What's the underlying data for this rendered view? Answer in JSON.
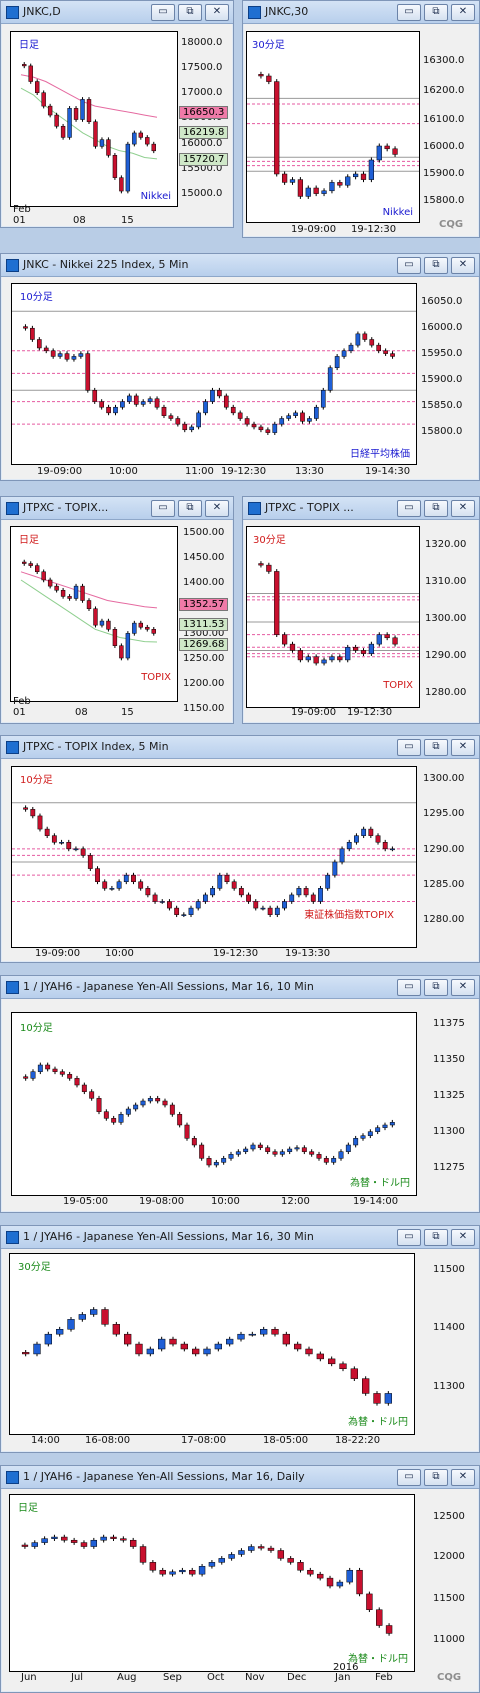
{
  "windows": [
    {
      "id": "w1",
      "title": "JNKC,D",
      "corner": "日足",
      "corner_color": "#1a1ad0",
      "src_label": "Nikkei",
      "src_color": "#1a1ad0",
      "yticks": [
        "18000.0",
        "17500.0",
        "17000.0",
        "16500.0",
        "16000.0",
        "15500.0",
        "15000.0"
      ],
      "xticks": [
        "Feb",
        "01",
        "08",
        "15"
      ],
      "tags": [
        {
          "text": "16650.3",
          "bg": "#f07aa8"
        },
        {
          "text": "16219.8",
          "bg": "#cfe8c8"
        },
        {
          "text": "15720.7",
          "bg": "#cfe8c8"
        }
      ]
    },
    {
      "id": "w2",
      "title": "JNKC,30",
      "corner": "30分足",
      "corner_color": "#1a1ad0",
      "src_label": "Nikkei",
      "src_color": "#1a1ad0",
      "yticks": [
        "16300.0",
        "16200.0",
        "16100.0",
        "16000.0",
        "15900.0",
        "15800.0"
      ],
      "xticks": [
        "19-09:00",
        "19-12:30"
      ],
      "tags": []
    },
    {
      "id": "w3",
      "title": "JNKC - Nikkei 225 Index, 5 Min",
      "corner": "10分足",
      "corner_color": "#1a1ad0",
      "src_label": "日経平均株価",
      "src_color": "#1a1ad0",
      "yticks": [
        "16050.0",
        "16000.0",
        "15950.0",
        "15900.0",
        "15850.0",
        "15800.0"
      ],
      "xticks": [
        "19-09:00",
        "10:00",
        "11:00",
        "19-12:30",
        "13:30",
        "19-14:30"
      ],
      "tags": []
    },
    {
      "id": "w4",
      "title": "JTPXC - TOPIX...",
      "corner": "日足",
      "corner_color": "#d01a1a",
      "src_label": "TOPIX",
      "src_color": "#d01a1a",
      "yticks": [
        "1500.00",
        "1450.00",
        "1400.00",
        "1350.00",
        "1300.00",
        "1250.00",
        "1200.00",
        "1150.00"
      ],
      "xticks": [
        "Feb",
        "01",
        "08",
        "15"
      ],
      "tags": [
        {
          "text": "1352.57",
          "bg": "#f07aa8"
        },
        {
          "text": "1311.53",
          "bg": "#cfe8c8"
        },
        {
          "text": "1269.68",
          "bg": "#cfe8c8"
        }
      ]
    },
    {
      "id": "w5",
      "title": "JTPXC - TOPIX ...",
      "corner": "30分足",
      "corner_color": "#d01a1a",
      "src_label": "TOPIX",
      "src_color": "#d01a1a",
      "yticks": [
        "1320.00",
        "1310.00",
        "1300.00",
        "1290.00",
        "1280.00"
      ],
      "xticks": [
        "19-09:00",
        "19-12:30"
      ],
      "tags": []
    },
    {
      "id": "w6",
      "title": "JTPXC - TOPIX Index, 5 Min",
      "corner": "10分足",
      "corner_color": "#d01a1a",
      "src_label": "東証株価指数TOPIX",
      "src_color": "#d01a1a",
      "yticks": [
        "1300.00",
        "1295.00",
        "1290.00",
        "1285.00",
        "1280.00"
      ],
      "xticks": [
        "19-09:00",
        "10:00",
        "19-12:30",
        "19-13:30"
      ],
      "tags": []
    },
    {
      "id": "w7",
      "title": "1 / JYAH6 - Japanese Yen-All Sessions, Mar 16, 10 Min",
      "corner": "10分足",
      "corner_color": "#1a8a1a",
      "src_label": "為替・ドル円",
      "src_color": "#1a8a1a",
      "yticks": [
        "11375",
        "11350",
        "11325",
        "11300",
        "11275"
      ],
      "xticks": [
        "19-05:00",
        "19-08:00",
        "10:00",
        "12:00",
        "19-14:00"
      ],
      "tags": []
    },
    {
      "id": "w8",
      "title": "1 / JYAH6 - Japanese Yen-All Sessions, Mar 16, 30 Min",
      "corner": "30分足",
      "corner_color": "#1a8a1a",
      "src_label": "為替・ドル円",
      "src_color": "#1a8a1a",
      "yticks": [
        "11500",
        "11400",
        "11300"
      ],
      "xticks": [
        "14:00",
        "16-08:00",
        "17-08:00",
        "18-05:00",
        "18-22:20"
      ],
      "tags": []
    },
    {
      "id": "w9",
      "title": "1 / JYAH6 - Japanese Yen-All Sessions, Mar 16, Daily",
      "corner": "日足",
      "corner_color": "#1a8a1a",
      "src_label": "為替・ドル円",
      "src_color": "#1a8a1a",
      "yticks": [
        "12500",
        "12000",
        "11500",
        "11000"
      ],
      "xticks": [
        "Jun",
        "Jul",
        "Aug",
        "Sep",
        "Oct",
        "Nov",
        "Dec",
        "Jan",
        "Feb"
      ],
      "tags": [],
      "year_label": "2016"
    }
  ],
  "buttons": {
    "minimize": "▭",
    "restore": "⧉",
    "close": "✕"
  },
  "brand": "CQG",
  "chart_data": [
    {
      "type": "candlestick",
      "title": "JNKC,D",
      "ylim": [
        14800,
        18200
      ],
      "close_series": [
        17800,
        17450,
        17200,
        16900,
        16700,
        16450,
        16200,
        16850,
        16600,
        17050,
        16550,
        16000,
        16150,
        15800,
        15300,
        15000,
        16050,
        16300,
        16200,
        16050,
        15900
      ],
      "ma_upper": [
        17600,
        17550,
        17450,
        17300,
        17150,
        17000,
        16900,
        16850,
        16800,
        16750,
        16700,
        16650
      ],
      "ma_lower": [
        17300,
        17150,
        16900,
        16700,
        16500,
        16300,
        16150,
        16000,
        15900,
        15850,
        15750,
        15720
      ]
    },
    {
      "type": "candlestick",
      "title": "JNKC,30",
      "ylim": [
        15750,
        16350
      ],
      "close_series": [
        16250,
        16230,
        15900,
        15870,
        15880,
        15820,
        15850,
        15830,
        15840,
        15870,
        15860,
        15890,
        15900,
        15880,
        15950,
        16000,
        15990,
        15970
      ],
      "levels": [
        16170,
        16150,
        16080,
        15960,
        15945,
        15930,
        15910
      ]
    },
    {
      "type": "candlestick",
      "title": "JNKC - Nikkei 225 Index, 5 Min",
      "ylim": [
        15780,
        16060
      ],
      "close_series": [
        16010,
        15990,
        15975,
        15970,
        15960,
        15965,
        15955,
        15960,
        15965,
        15900,
        15880,
        15870,
        15860,
        15870,
        15880,
        15890,
        15875,
        15880,
        15885,
        15870,
        15855,
        15850,
        15840,
        15830,
        15835,
        15860,
        15880,
        15900,
        15890,
        15870,
        15860,
        15850,
        15840,
        15835,
        15830,
        15825,
        15840,
        15850,
        15855,
        15860,
        15845,
        15850,
        15870,
        15900,
        15940,
        15960,
        15970,
        15980,
        16000,
        15990,
        15980,
        15970,
        15965,
        15960
      ],
      "levels": [
        16040,
        15970,
        15930,
        15900,
        15880,
        15840
      ]
    },
    {
      "type": "candlestick",
      "title": "JTPXC - TOPIX",
      "ylim": [
        1140,
        1510
      ],
      "close_series": [
        1460,
        1455,
        1440,
        1420,
        1405,
        1395,
        1380,
        1375,
        1405,
        1370,
        1350,
        1310,
        1320,
        1300,
        1260,
        1230,
        1290,
        1315,
        1305,
        1300,
        1290
      ],
      "ma_upper": [
        1440,
        1430,
        1420,
        1410,
        1400,
        1390,
        1380,
        1370,
        1365,
        1360,
        1355,
        1352
      ],
      "ma_lower": [
        1420,
        1400,
        1380,
        1360,
        1340,
        1320,
        1300,
        1290,
        1280,
        1275,
        1270,
        1269
      ]
    },
    {
      "type": "candlestick",
      "title": "JTPXC - TOPIX 30",
      "ylim": [
        1275,
        1325
      ],
      "close_series": [
        1318,
        1316,
        1296,
        1293,
        1291,
        1288,
        1289,
        1287,
        1288,
        1289,
        1288,
        1292,
        1291,
        1290,
        1293,
        1296,
        1295,
        1293
      ],
      "levels": [
        1309,
        1308,
        1307,
        1300,
        1296,
        1292,
        1291,
        1290,
        1289
      ]
    },
    {
      "type": "candlestick",
      "title": "JTPXC - TOPIX Index, 5 Min",
      "ylim": [
        1278,
        1302
      ],
      "close_series": [
        1298,
        1297,
        1295,
        1294,
        1293,
        1293,
        1292,
        1292,
        1291,
        1289,
        1287,
        1286,
        1286,
        1287,
        1288,
        1287,
        1286,
        1285,
        1284,
        1284,
        1283,
        1282,
        1282,
        1283,
        1284,
        1285,
        1286,
        1288,
        1287,
        1286,
        1285,
        1284,
        1283,
        1283,
        1282,
        1283,
        1284,
        1285,
        1286,
        1285,
        1284,
        1286,
        1288,
        1290,
        1292,
        1293,
        1294,
        1295,
        1294,
        1293,
        1292,
        1292
      ],
      "levels": [
        1299,
        1292,
        1291,
        1290,
        1288,
        1284
      ]
    },
    {
      "type": "candlestick",
      "title": "JYAH6 10 Min",
      "ylim": [
        11262,
        11382
      ],
      "close_series": [
        11345,
        11350,
        11355,
        11352,
        11350,
        11348,
        11345,
        11340,
        11335,
        11330,
        11320,
        11315,
        11312,
        11318,
        11322,
        11325,
        11328,
        11330,
        11328,
        11325,
        11318,
        11310,
        11300,
        11295,
        11285,
        11280,
        11282,
        11285,
        11288,
        11290,
        11292,
        11295,
        11293,
        11290,
        11288,
        11290,
        11292,
        11293,
        11290,
        11288,
        11285,
        11282,
        11285,
        11290,
        11295,
        11300,
        11302,
        11305,
        11308,
        11310,
        11312
      ]
    },
    {
      "type": "candlestick",
      "title": "JYAH6 30 Min",
      "ylim": [
        11230,
        11550
      ],
      "close_series": [
        11380,
        11400,
        11420,
        11430,
        11450,
        11460,
        11470,
        11440,
        11420,
        11400,
        11380,
        11390,
        11410,
        11400,
        11390,
        11380,
        11390,
        11400,
        11410,
        11420,
        11420,
        11430,
        11420,
        11400,
        11390,
        11380,
        11370,
        11360,
        11350,
        11330,
        11300,
        11280,
        11300
      ]
    },
    {
      "type": "candlestick",
      "title": "JYAH6 Daily",
      "ylim": [
        10800,
        12750
      ],
      "close_series": [
        12300,
        12350,
        12400,
        12420,
        12380,
        12350,
        12300,
        12380,
        12420,
        12400,
        12380,
        12300,
        12100,
        12000,
        11950,
        11980,
        12000,
        11950,
        12050,
        12100,
        12150,
        12200,
        12250,
        12300,
        12280,
        12250,
        12150,
        12100,
        12000,
        11950,
        11900,
        11800,
        11850,
        12000,
        11700,
        11500,
        11300,
        11200
      ]
    }
  ]
}
